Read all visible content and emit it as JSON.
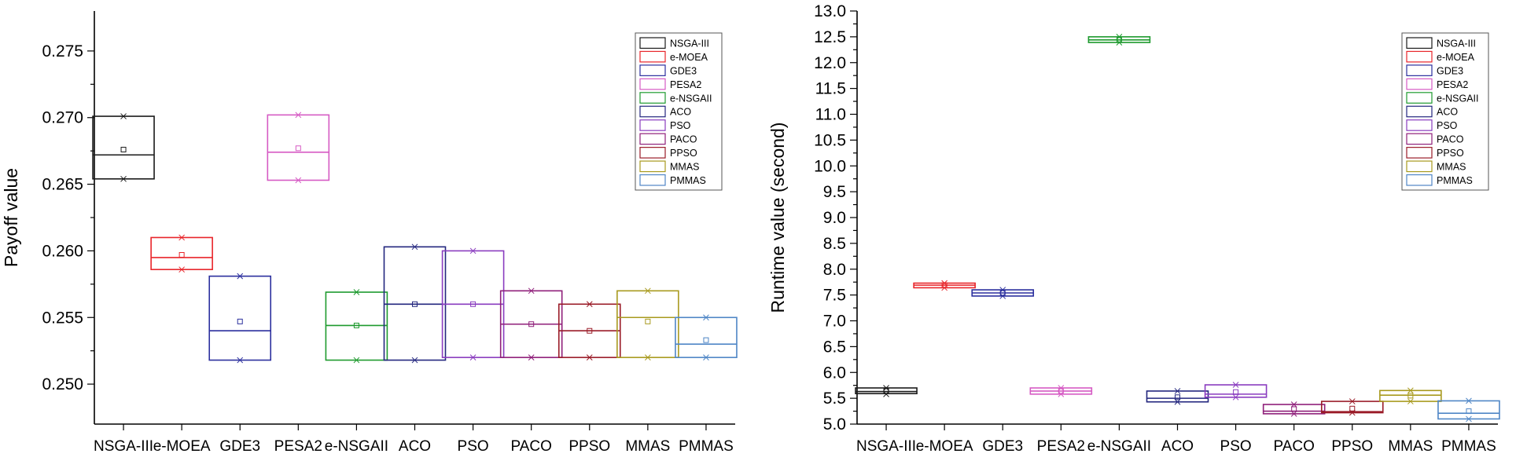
{
  "chart_data": [
    {
      "type": "box",
      "ylabel": "Payoff value",
      "xlabel": "",
      "ylim": [
        0.247,
        0.278
      ],
      "yticks": [
        0.25,
        0.255,
        0.26,
        0.265,
        0.27,
        0.275
      ],
      "ytick_labels": [
        "0.250",
        "0.255",
        "0.260",
        "0.265",
        "0.270",
        "0.275"
      ],
      "legend_position": "top-right",
      "categories": [
        "NSGA-III",
        "e-MOEA",
        "GDE3",
        "PESA2",
        "e-NSGAII",
        "ACO",
        "PSO",
        "PACO",
        "PPSO",
        "MMAS",
        "PMMAS"
      ],
      "series": [
        {
          "name": "NSGA-III",
          "color": "#1a1a1a",
          "q1": 0.2654,
          "median": 0.2672,
          "q3": 0.2701,
          "mean": 0.2676,
          "min": 0.2654,
          "max": 0.2701
        },
        {
          "name": "e-MOEA",
          "color": "#e8252a",
          "q1": 0.2586,
          "median": 0.2595,
          "q3": 0.261,
          "mean": 0.2597,
          "min": 0.2586,
          "max": 0.261
        },
        {
          "name": "GDE3",
          "color": "#2b2f9e",
          "q1": 0.2518,
          "median": 0.254,
          "q3": 0.2581,
          "mean": 0.2547,
          "min": 0.2518,
          "max": 0.2581
        },
        {
          "name": "PESA2",
          "color": "#d65bc4",
          "q1": 0.2653,
          "median": 0.2674,
          "q3": 0.2702,
          "mean": 0.2677,
          "min": 0.2653,
          "max": 0.2702
        },
        {
          "name": "e-NSGAII",
          "color": "#1e9a2e",
          "q1": 0.2518,
          "median": 0.2544,
          "q3": 0.2569,
          "mean": 0.2544,
          "min": 0.2518,
          "max": 0.2569
        },
        {
          "name": "ACO",
          "color": "#23267e",
          "q1": 0.2518,
          "median": 0.256,
          "q3": 0.2603,
          "mean": 0.256,
          "min": 0.2518,
          "max": 0.2603
        },
        {
          "name": "PSO",
          "color": "#8a3cbf",
          "q1": 0.252,
          "median": 0.256,
          "q3": 0.26,
          "mean": 0.256,
          "min": 0.252,
          "max": 0.26
        },
        {
          "name": "PACO",
          "color": "#8f1f7a",
          "q1": 0.252,
          "median": 0.2545,
          "q3": 0.257,
          "mean": 0.2545,
          "min": 0.252,
          "max": 0.257
        },
        {
          "name": "PPSO",
          "color": "#9a1c28",
          "q1": 0.252,
          "median": 0.254,
          "q3": 0.256,
          "mean": 0.254,
          "min": 0.252,
          "max": 0.256
        },
        {
          "name": "MMAS",
          "color": "#a89a1e",
          "q1": 0.252,
          "median": 0.255,
          "q3": 0.257,
          "mean": 0.2547,
          "min": 0.252,
          "max": 0.257
        },
        {
          "name": "PMMAS",
          "color": "#4f86c6",
          "q1": 0.252,
          "median": 0.253,
          "q3": 0.255,
          "mean": 0.2533,
          "min": 0.252,
          "max": 0.255
        }
      ]
    },
    {
      "type": "box",
      "ylabel": "Runtime value (second)",
      "xlabel": "",
      "ylim": [
        5.0,
        13.0
      ],
      "yticks": [
        5.0,
        5.5,
        6.0,
        6.5,
        7.0,
        7.5,
        8.0,
        8.5,
        9.0,
        9.5,
        10.0,
        10.5,
        11.0,
        11.5,
        12.0,
        12.5,
        13.0
      ],
      "ytick_labels": [
        "5.0",
        "5.5",
        "6.0",
        "6.5",
        "7.0",
        "7.5",
        "8.0",
        "8.5",
        "9.0",
        "9.5",
        "10.0",
        "10.5",
        "11.0",
        "11.5",
        "12.0",
        "12.5",
        "13.0"
      ],
      "legend_position": "top-right",
      "categories": [
        "NSGA-III",
        "e-MOEA",
        "GDE3",
        "PESA2",
        "e-NSGAII",
        "ACO",
        "PSO",
        "PACO",
        "PPSO",
        "MMAS",
        "PMMAS"
      ],
      "series": [
        {
          "name": "NSGA-III",
          "color": "#1a1a1a",
          "q1": 5.59,
          "median": 5.63,
          "q3": 5.7,
          "mean": 5.64,
          "min": 5.58,
          "max": 5.7
        },
        {
          "name": "e-MOEA",
          "color": "#e8252a",
          "q1": 7.64,
          "median": 7.69,
          "q3": 7.73,
          "mean": 7.69,
          "min": 7.64,
          "max": 7.73
        },
        {
          "name": "GDE3",
          "color": "#2b2f9e",
          "q1": 7.48,
          "median": 7.54,
          "q3": 7.6,
          "mean": 7.54,
          "min": 7.48,
          "max": 7.6
        },
        {
          "name": "PESA2",
          "color": "#d65bc4",
          "q1": 5.58,
          "median": 5.64,
          "q3": 5.7,
          "mean": 5.64,
          "min": 5.58,
          "max": 5.7
        },
        {
          "name": "e-NSGAII",
          "color": "#1e9a2e",
          "q1": 12.39,
          "median": 12.44,
          "q3": 12.5,
          "mean": 12.44,
          "min": 12.39,
          "max": 12.5
        },
        {
          "name": "ACO",
          "color": "#23267e",
          "q1": 5.43,
          "median": 5.5,
          "q3": 5.64,
          "mean": 5.52,
          "min": 5.43,
          "max": 5.64
        },
        {
          "name": "PSO",
          "color": "#8a3cbf",
          "q1": 5.52,
          "median": 5.58,
          "q3": 5.76,
          "mean": 5.62,
          "min": 5.52,
          "max": 5.76
        },
        {
          "name": "PACO",
          "color": "#8f1f7a",
          "q1": 5.2,
          "median": 5.25,
          "q3": 5.38,
          "mean": 5.29,
          "min": 5.2,
          "max": 5.38
        },
        {
          "name": "PPSO",
          "color": "#9a1c28",
          "q1": 5.22,
          "median": 5.24,
          "q3": 5.44,
          "mean": 5.3,
          "min": 5.22,
          "max": 5.44
        },
        {
          "name": "MMAS",
          "color": "#a89a1e",
          "q1": 5.44,
          "median": 5.56,
          "q3": 5.65,
          "mean": 5.55,
          "min": 5.44,
          "max": 5.65
        },
        {
          "name": "PMMAS",
          "color": "#4f86c6",
          "q1": 5.1,
          "median": 5.21,
          "q3": 5.45,
          "mean": 5.25,
          "min": 5.1,
          "max": 5.45
        }
      ]
    }
  ]
}
